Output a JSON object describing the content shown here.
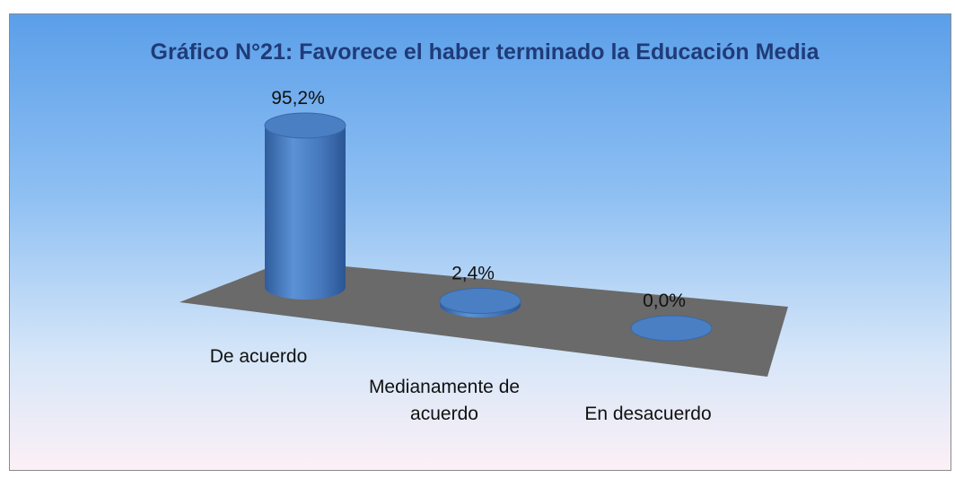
{
  "chart_data": {
    "type": "bar3d",
    "title": "Gráfico N°21: Favorece el haber terminado la Educación Media",
    "categories": [
      "De acuerdo",
      "Medianamente de acuerdo",
      "En desacuerdo"
    ],
    "values": [
      95.2,
      2.4,
      0.0
    ],
    "value_labels": [
      "95,2%",
      "2,4%",
      "0,0%"
    ],
    "color": "#4a7fc4"
  }
}
